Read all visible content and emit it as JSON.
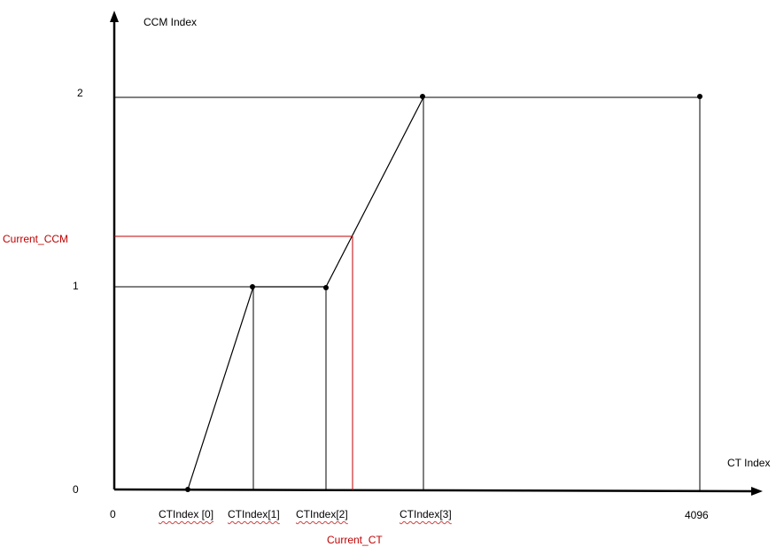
{
  "diagram": {
    "y_axis_label": "CCM Index",
    "x_axis_label": "CT Index",
    "y_ticks": {
      "zero": "0",
      "one": "1",
      "two": "2"
    },
    "x_ticks": {
      "zero": "0",
      "ct0": "CTIndex [0]",
      "ct1": "CTIndex[1]",
      "ct2": "CTIndex[2]",
      "ct3": "CTIndex[3]",
      "max": "4096"
    },
    "current_ccm_label": "Current_CCM",
    "current_ct_label": "Current_CT",
    "colors": {
      "line": "#000000",
      "highlight": "#c00000"
    }
  }
}
